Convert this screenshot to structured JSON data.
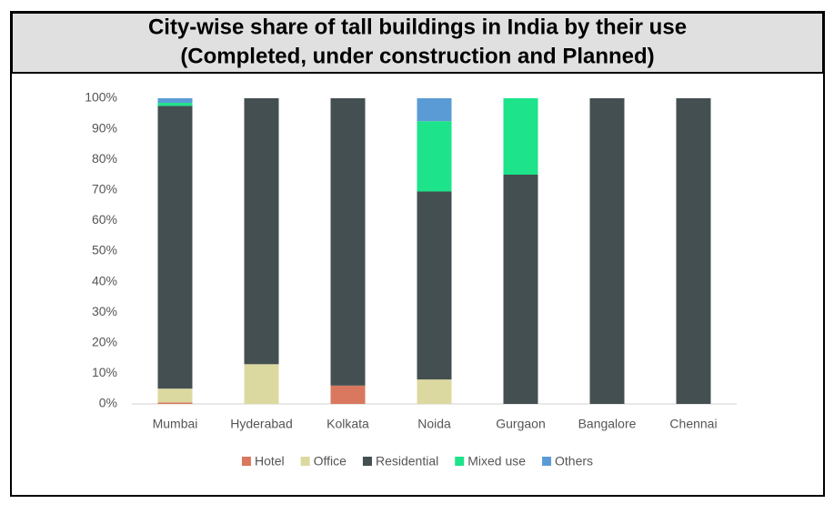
{
  "chart_data": {
    "type": "stacked_bar",
    "title": "City-wise share of tall buildings in India by their use",
    "subtitle": "(Completed, under construction and Planned)",
    "categories": [
      "Mumbai",
      "Hyderabad",
      "Kolkata",
      "Noida",
      "Gurgaon",
      "Bangalore",
      "Chennai"
    ],
    "series": [
      {
        "name": "Hotel",
        "color": "#d9785e",
        "values": [
          0.5,
          0,
          6,
          0,
          0,
          0,
          0
        ]
      },
      {
        "name": "Office",
        "color": "#dcd9a0",
        "values": [
          4.5,
          13,
          0,
          8,
          0,
          0,
          0
        ]
      },
      {
        "name": "Residential",
        "color": "#434f51",
        "values": [
          92.5,
          87,
          94,
          61.5,
          75,
          100,
          100
        ]
      },
      {
        "name": "Mixed use",
        "color": "#1de38a",
        "values": [
          1,
          0,
          0,
          23,
          25,
          0,
          0
        ]
      },
      {
        "name": "Others",
        "color": "#5b9bd5",
        "values": [
          1.5,
          0,
          0,
          7.5,
          0,
          0,
          0
        ]
      }
    ],
    "ylim": [
      0,
      100
    ],
    "yticks": [
      {
        "value": 0,
        "label": "0%"
      },
      {
        "value": 10,
        "label": "10%"
      },
      {
        "value": 20,
        "label": "20%"
      },
      {
        "value": 30,
        "label": "30%"
      },
      {
        "value": 40,
        "label": "40%"
      },
      {
        "value": 50,
        "label": "50%"
      },
      {
        "value": 60,
        "label": "60%"
      },
      {
        "value": 70,
        "label": "70%"
      },
      {
        "value": 80,
        "label": "80%"
      },
      {
        "value": 90,
        "label": "90%"
      },
      {
        "value": 100,
        "label": "100%"
      }
    ],
    "grid": false,
    "legend": "bottom"
  }
}
